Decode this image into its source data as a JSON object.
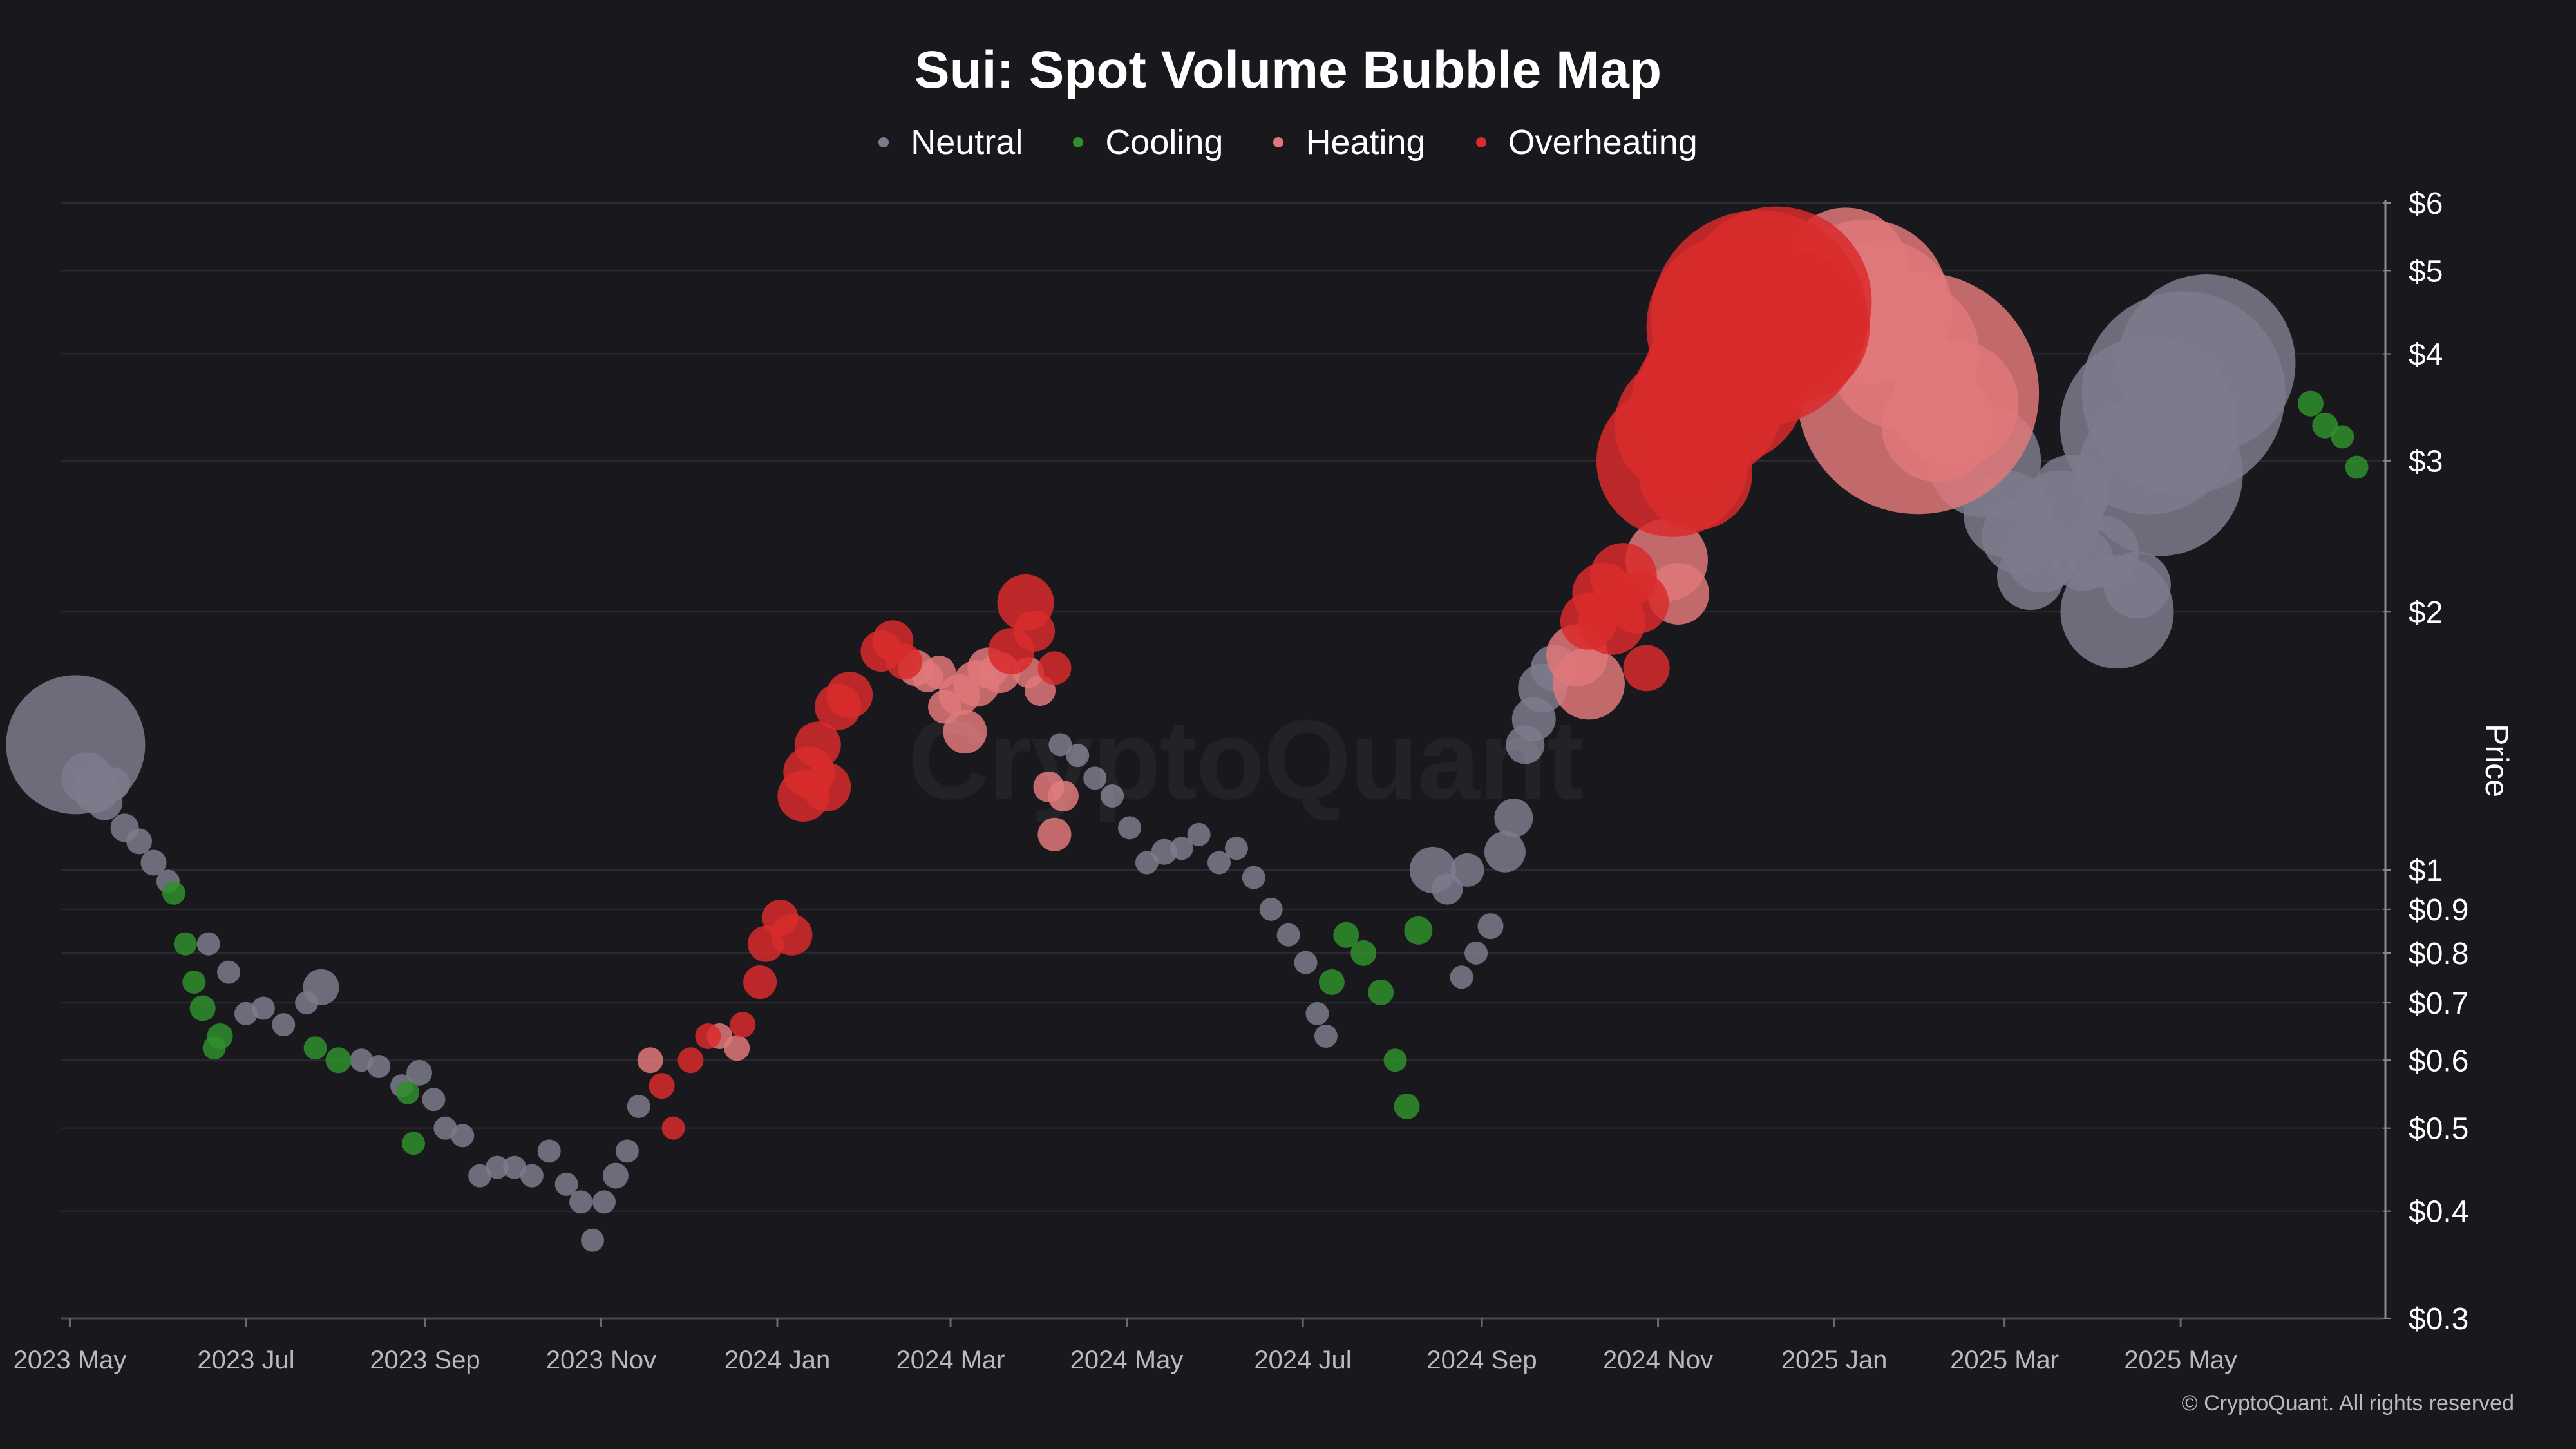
{
  "chart_data": {
    "type": "scatter",
    "title": "Sui: Spot Volume Bubble Map",
    "ylabel": "Price",
    "xlabel": "",
    "yscale": "log",
    "ylim": [
      0.3,
      6
    ],
    "xlim": [
      "2023-04-28",
      "2025-07-10"
    ],
    "grid": true,
    "legend_position": "top-center",
    "watermark": "CryptoQuant",
    "copyright": "© CryptoQuant. All rights reserved",
    "x_ticks": [
      {
        "date": "2023-05-01",
        "label": "2023 May"
      },
      {
        "date": "2023-07-01",
        "label": "2023 Jul"
      },
      {
        "date": "2023-09-01",
        "label": "2023 Sep"
      },
      {
        "date": "2023-11-01",
        "label": "2023 Nov"
      },
      {
        "date": "2024-01-01",
        "label": "2024 Jan"
      },
      {
        "date": "2024-03-01",
        "label": "2024 Mar"
      },
      {
        "date": "2024-05-01",
        "label": "2024 May"
      },
      {
        "date": "2024-07-01",
        "label": "2024 Jul"
      },
      {
        "date": "2024-09-01",
        "label": "2024 Sep"
      },
      {
        "date": "2024-11-01",
        "label": "2024 Nov"
      },
      {
        "date": "2025-01-01",
        "label": "2025 Jan"
      },
      {
        "date": "2025-03-01",
        "label": "2025 Mar"
      },
      {
        "date": "2025-05-01",
        "label": "2025 May"
      }
    ],
    "y_ticks": [
      {
        "value": 6,
        "label": "$6"
      },
      {
        "value": 5,
        "label": "$5"
      },
      {
        "value": 4,
        "label": "$4"
      },
      {
        "value": 3,
        "label": "$3"
      },
      {
        "value": 2,
        "label": "$2"
      },
      {
        "value": 1,
        "label": "$1"
      },
      {
        "value": 0.9,
        "label": "$0.9"
      },
      {
        "value": 0.8,
        "label": "$0.8"
      },
      {
        "value": 0.7,
        "label": "$0.7"
      },
      {
        "value": 0.6,
        "label": "$0.6"
      },
      {
        "value": 0.5,
        "label": "$0.5"
      },
      {
        "value": 0.4,
        "label": "$0.4"
      },
      {
        "value": 0.3,
        "label": "$0.3"
      }
    ],
    "series": [
      {
        "name": "Neutral",
        "color": "#7b7b8c",
        "points": [
          [
            "2023-05-03",
            1.4,
            5
          ],
          [
            "2023-05-07",
            1.28,
            1.6
          ],
          [
            "2023-05-10",
            1.24,
            1.4
          ],
          [
            "2023-05-13",
            1.2,
            1
          ],
          [
            "2023-05-16",
            1.26,
            0.9
          ],
          [
            "2023-05-20",
            1.12,
            0.7
          ],
          [
            "2023-05-25",
            1.08,
            0.6
          ],
          [
            "2023-05-30",
            1.02,
            0.6
          ],
          [
            "2023-06-04",
            0.97,
            0.5
          ],
          [
            "2023-06-18",
            0.82,
            0.5
          ],
          [
            "2023-06-25",
            0.76,
            0.5
          ],
          [
            "2023-07-01",
            0.68,
            0.5
          ],
          [
            "2023-07-07",
            0.69,
            0.5
          ],
          [
            "2023-07-14",
            0.66,
            0.5
          ],
          [
            "2023-07-22",
            0.7,
            0.5
          ],
          [
            "2023-07-27",
            0.73,
            1
          ],
          [
            "2023-08-10",
            0.6,
            0.5
          ],
          [
            "2023-08-16",
            0.59,
            0.5
          ],
          [
            "2023-08-24",
            0.56,
            0.5
          ],
          [
            "2023-08-30",
            0.58,
            0.6
          ],
          [
            "2023-09-04",
            0.54,
            0.5
          ],
          [
            "2023-09-08",
            0.5,
            0.5
          ],
          [
            "2023-09-14",
            0.49,
            0.5
          ],
          [
            "2023-09-20",
            0.44,
            0.5
          ],
          [
            "2023-09-26",
            0.45,
            0.5
          ],
          [
            "2023-10-02",
            0.45,
            0.5
          ],
          [
            "2023-10-08",
            0.44,
            0.5
          ],
          [
            "2023-10-14",
            0.47,
            0.5
          ],
          [
            "2023-10-20",
            0.43,
            0.5
          ],
          [
            "2023-10-25",
            0.41,
            0.5
          ],
          [
            "2023-10-29",
            0.37,
            0.5
          ],
          [
            "2023-11-02",
            0.41,
            0.5
          ],
          [
            "2023-11-06",
            0.44,
            0.6
          ],
          [
            "2023-11-10",
            0.47,
            0.5
          ],
          [
            "2023-11-14",
            0.53,
            0.5
          ],
          [
            "2024-04-08",
            1.4,
            0.5
          ],
          [
            "2024-04-14",
            1.36,
            0.5
          ],
          [
            "2024-04-20",
            1.28,
            0.5
          ],
          [
            "2024-04-26",
            1.22,
            0.5
          ],
          [
            "2024-05-02",
            1.12,
            0.5
          ],
          [
            "2024-05-08",
            1.02,
            0.5
          ],
          [
            "2024-05-14",
            1.05,
            0.6
          ],
          [
            "2024-05-20",
            1.06,
            0.5
          ],
          [
            "2024-05-26",
            1.1,
            0.5
          ],
          [
            "2024-06-02",
            1.02,
            0.5
          ],
          [
            "2024-06-08",
            1.06,
            0.5
          ],
          [
            "2024-06-14",
            0.98,
            0.5
          ],
          [
            "2024-06-20",
            0.9,
            0.5
          ],
          [
            "2024-06-26",
            0.84,
            0.5
          ],
          [
            "2024-07-02",
            0.78,
            0.5
          ],
          [
            "2024-07-06",
            0.68,
            0.5
          ],
          [
            "2024-07-09",
            0.64,
            0.5
          ],
          [
            "2024-08-25",
            0.75,
            0.5
          ],
          [
            "2024-08-30",
            0.8,
            0.5
          ],
          [
            "2024-09-04",
            0.86,
            0.6
          ],
          [
            "2024-08-15",
            1.0,
            1.4
          ],
          [
            "2024-08-20",
            0.95,
            0.8
          ],
          [
            "2024-08-27",
            1.0,
            0.9
          ],
          [
            "2024-09-09",
            1.05,
            1.2
          ],
          [
            "2024-09-12",
            1.15,
            1.1
          ],
          [
            "2024-09-16",
            1.4,
            1.1
          ],
          [
            "2024-09-19",
            1.5,
            1.3
          ],
          [
            "2024-09-22",
            1.63,
            1.5
          ],
          [
            "2024-09-26",
            1.72,
            1.4
          ],
          [
            "2025-02-22",
            3.0,
            4
          ],
          [
            "2025-03-02",
            2.6,
            3
          ],
          [
            "2025-03-06",
            2.45,
            2.5
          ],
          [
            "2025-03-10",
            2.2,
            2.2
          ],
          [
            "2025-03-14",
            2.32,
            2.4
          ],
          [
            "2025-03-20",
            2.6,
            3
          ],
          [
            "2025-03-24",
            2.75,
            2.6
          ],
          [
            "2025-03-28",
            2.3,
            2
          ],
          [
            "2025-04-04",
            2.35,
            2.4
          ],
          [
            "2025-04-09",
            2.0,
            4
          ],
          [
            "2025-04-16",
            2.15,
            2.2
          ],
          [
            "2025-04-20",
            3.3,
            6.5
          ],
          [
            "2025-04-24",
            2.9,
            6
          ],
          [
            "2025-05-02",
            3.6,
            7.5
          ],
          [
            "2025-05-10",
            3.9,
            6.5
          ]
        ]
      },
      {
        "name": "Cooling",
        "color": "#2f8f2d",
        "points": [
          [
            "2023-06-06",
            0.94,
            0.5
          ],
          [
            "2023-06-10",
            0.82,
            0.5
          ],
          [
            "2023-06-13",
            0.74,
            0.5
          ],
          [
            "2023-06-16",
            0.69,
            0.6
          ],
          [
            "2023-06-20",
            0.62,
            0.5
          ],
          [
            "2023-06-22",
            0.64,
            0.6
          ],
          [
            "2023-07-25",
            0.62,
            0.5
          ],
          [
            "2023-08-02",
            0.6,
            0.6
          ],
          [
            "2023-08-26",
            0.55,
            0.5
          ],
          [
            "2023-08-28",
            0.48,
            0.5
          ],
          [
            "2024-07-11",
            0.74,
            0.6
          ],
          [
            "2024-07-16",
            0.84,
            0.6
          ],
          [
            "2024-07-22",
            0.8,
            0.6
          ],
          [
            "2024-07-28",
            0.72,
            0.6
          ],
          [
            "2024-08-02",
            0.6,
            0.5
          ],
          [
            "2024-08-06",
            0.53,
            0.6
          ],
          [
            "2024-08-10",
            0.85,
            0.7
          ],
          [
            "2025-06-15",
            3.5,
            0.6
          ],
          [
            "2025-06-20",
            3.3,
            0.6
          ],
          [
            "2025-06-26",
            3.2,
            0.5
          ],
          [
            "2025-07-01",
            2.95,
            0.5
          ]
        ]
      },
      {
        "name": "Heating",
        "color": "#e0787a",
        "points": [
          [
            "2023-11-18",
            0.6,
            0.6
          ],
          [
            "2023-12-12",
            0.64,
            0.6
          ],
          [
            "2023-12-18",
            0.62,
            0.6
          ],
          [
            "2024-02-18",
            1.72,
            1
          ],
          [
            "2024-02-22",
            1.68,
            0.8
          ],
          [
            "2024-02-26",
            1.7,
            0.9
          ],
          [
            "2024-02-28",
            1.55,
            0.9
          ],
          [
            "2024-03-04",
            1.6,
            1.2
          ],
          [
            "2024-03-06",
            1.45,
            1.3
          ],
          [
            "2024-03-10",
            1.65,
            1.4
          ],
          [
            "2024-03-14",
            1.72,
            1.2
          ],
          [
            "2024-03-18",
            1.7,
            1.2
          ],
          [
            "2024-03-28",
            1.7,
            0.8
          ],
          [
            "2024-04-01",
            1.62,
            0.8
          ],
          [
            "2024-04-04",
            1.25,
            0.8
          ],
          [
            "2024-04-06",
            1.1,
            0.9
          ],
          [
            "2024-04-09",
            1.22,
            0.8
          ],
          [
            "2024-10-04",
            1.78,
            2
          ],
          [
            "2024-10-08",
            1.65,
            2.4
          ],
          [
            "2024-11-04",
            2.3,
            2.8
          ],
          [
            "2024-11-08",
            2.1,
            2
          ],
          [
            "2025-01-05",
            5.0,
            4.5
          ],
          [
            "2025-01-12",
            4.6,
            6
          ],
          [
            "2025-01-18",
            4.5,
            5
          ],
          [
            "2025-01-25",
            4.0,
            5.5
          ],
          [
            "2025-01-30",
            3.6,
            9
          ],
          [
            "2025-02-06",
            3.3,
            4
          ],
          [
            "2025-02-12",
            3.5,
            4.5
          ]
        ]
      },
      {
        "name": "Overheating",
        "color": "#d92c2c",
        "points": [
          [
            "2023-11-22",
            0.56,
            0.6
          ],
          [
            "2023-11-26",
            0.5,
            0.5
          ],
          [
            "2023-12-02",
            0.6,
            0.6
          ],
          [
            "2023-12-08",
            0.64,
            0.6
          ],
          [
            "2023-12-20",
            0.66,
            0.6
          ],
          [
            "2023-12-26",
            0.74,
            0.9
          ],
          [
            "2023-12-28",
            0.82,
            1
          ],
          [
            "2024-01-02",
            0.88,
            1
          ],
          [
            "2024-01-06",
            0.84,
            1.2
          ],
          [
            "2024-01-10",
            1.22,
            1.6
          ],
          [
            "2024-01-12",
            1.3,
            1.6
          ],
          [
            "2024-01-15",
            1.4,
            1.4
          ],
          [
            "2024-01-18",
            1.25,
            1.5
          ],
          [
            "2024-01-22",
            1.55,
            1.4
          ],
          [
            "2024-01-26",
            1.6,
            1.4
          ],
          [
            "2024-02-06",
            1.8,
            1.2
          ],
          [
            "2024-02-10",
            1.85,
            1.2
          ],
          [
            "2024-02-14",
            1.75,
            1
          ],
          [
            "2024-03-22",
            1.8,
            1.4
          ],
          [
            "2024-03-27",
            2.05,
            1.8
          ],
          [
            "2024-03-30",
            1.9,
            1.2
          ],
          [
            "2024-04-06",
            1.72,
            0.9
          ],
          [
            "2024-10-08",
            1.95,
            1.8
          ],
          [
            "2024-10-13",
            2.1,
            2
          ],
          [
            "2024-10-16",
            1.95,
            2.2
          ],
          [
            "2024-10-20",
            2.2,
            2.2
          ],
          [
            "2024-10-25",
            2.05,
            2
          ],
          [
            "2024-10-28",
            1.72,
            1.4
          ],
          [
            "2024-11-06",
            3.0,
            5.5
          ],
          [
            "2024-11-10",
            3.3,
            5
          ],
          [
            "2024-11-14",
            2.9,
            4
          ],
          [
            "2024-11-18",
            3.5,
            5.5
          ],
          [
            "2024-11-24",
            3.7,
            6
          ],
          [
            "2024-11-30",
            4.3,
            7
          ],
          [
            "2024-12-06",
            4.4,
            8
          ],
          [
            "2024-12-12",
            4.6,
            7
          ],
          [
            "2024-12-18",
            4.3,
            5.5
          ]
        ]
      }
    ]
  }
}
